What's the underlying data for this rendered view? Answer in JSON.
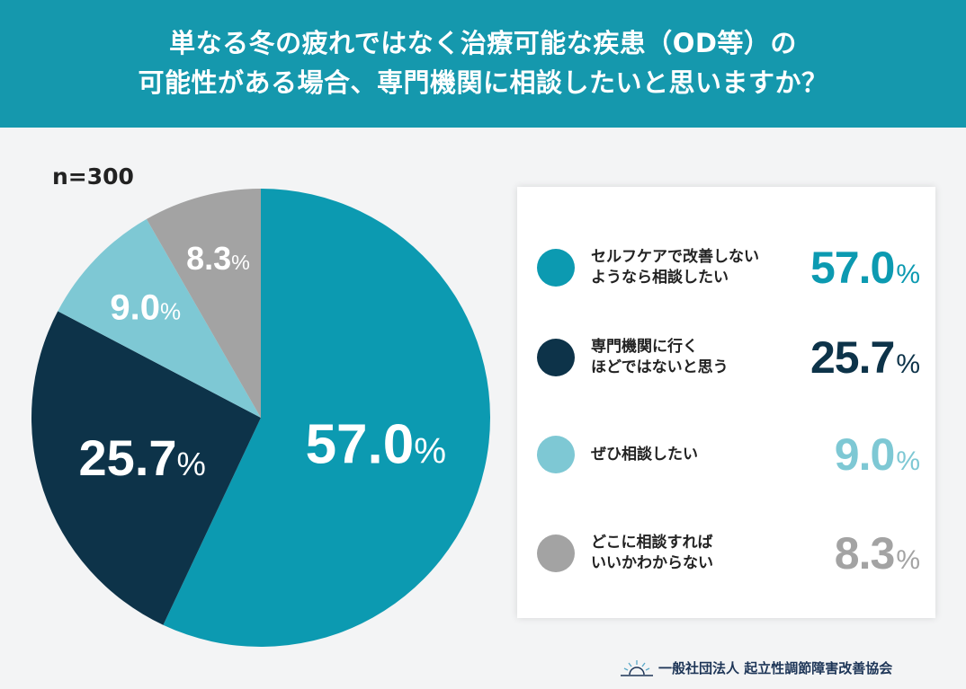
{
  "header": {
    "title_line1": "単なる冬の疲れではなく治療可能な疾患（OD等）の",
    "title_line2": "可能性がある場合、専門機関に相談したいと思いますか？"
  },
  "sample": "n=300",
  "chart_data": {
    "type": "pie",
    "start": "12 o'clock",
    "direction": "clockwise",
    "slices": [
      {
        "label": "セルフケアで改善しないようなら相談したい",
        "line1": "セルフケアで改善しない",
        "line2": "ようなら相談したい",
        "value": 57.0,
        "display": "57.0",
        "color": "#0c9ab1"
      },
      {
        "label": "専門機関に行くほどではないと思う",
        "line1": "専門機関に行く",
        "line2": "ほどではないと思う",
        "value": 25.7,
        "display": "25.7",
        "color": "#0d3349"
      },
      {
        "label": "ぜひ相談したい",
        "line1": "ぜひ相談したい",
        "line2": "",
        "value": 9.0,
        "display": "9.0",
        "color": "#7ec8d4"
      },
      {
        "label": "どこに相談すればいいかわからない",
        "line1": "どこに相談すれば",
        "line2": "いいかわからない",
        "value": 8.3,
        "display": "8.3",
        "color": "#a3a3a3"
      }
    ],
    "unit": "%"
  },
  "footer": {
    "org": "一般社団法人 起立性調節障害改善協会",
    "logo_icon": "sunrise-icon"
  }
}
